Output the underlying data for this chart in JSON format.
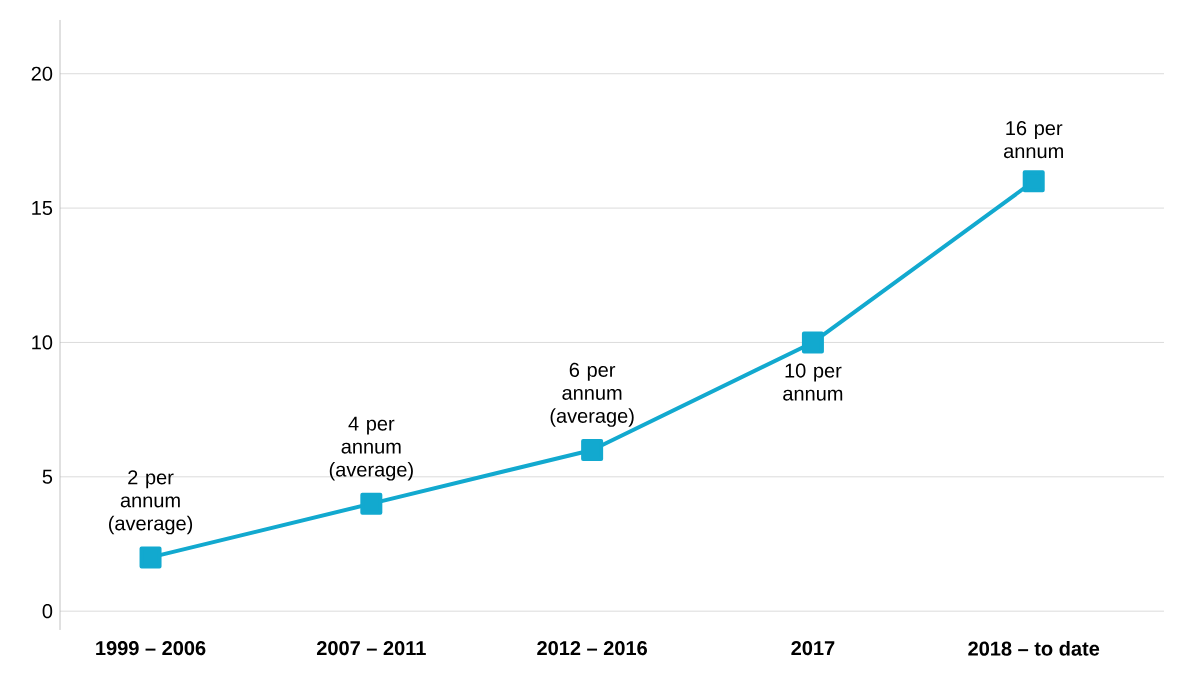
{
  "chart_data": {
    "type": "line",
    "categories": [
      "1999 – 2006",
      "2007 – 2011",
      "2012 – 2016",
      "2017",
      "2018 – to date"
    ],
    "values": [
      2,
      4,
      6,
      10,
      16
    ],
    "value_labels": [
      "2 per annum (average)",
      "4 per annum (average)",
      "6 per annum (average)",
      "10 per annum",
      "16 per annum"
    ],
    "color": "#12a9cf",
    "marker": "square",
    "ylim": [
      -0.7,
      22
    ],
    "yticks": [
      0,
      5,
      10,
      15,
      20
    ],
    "grid": "y"
  }
}
